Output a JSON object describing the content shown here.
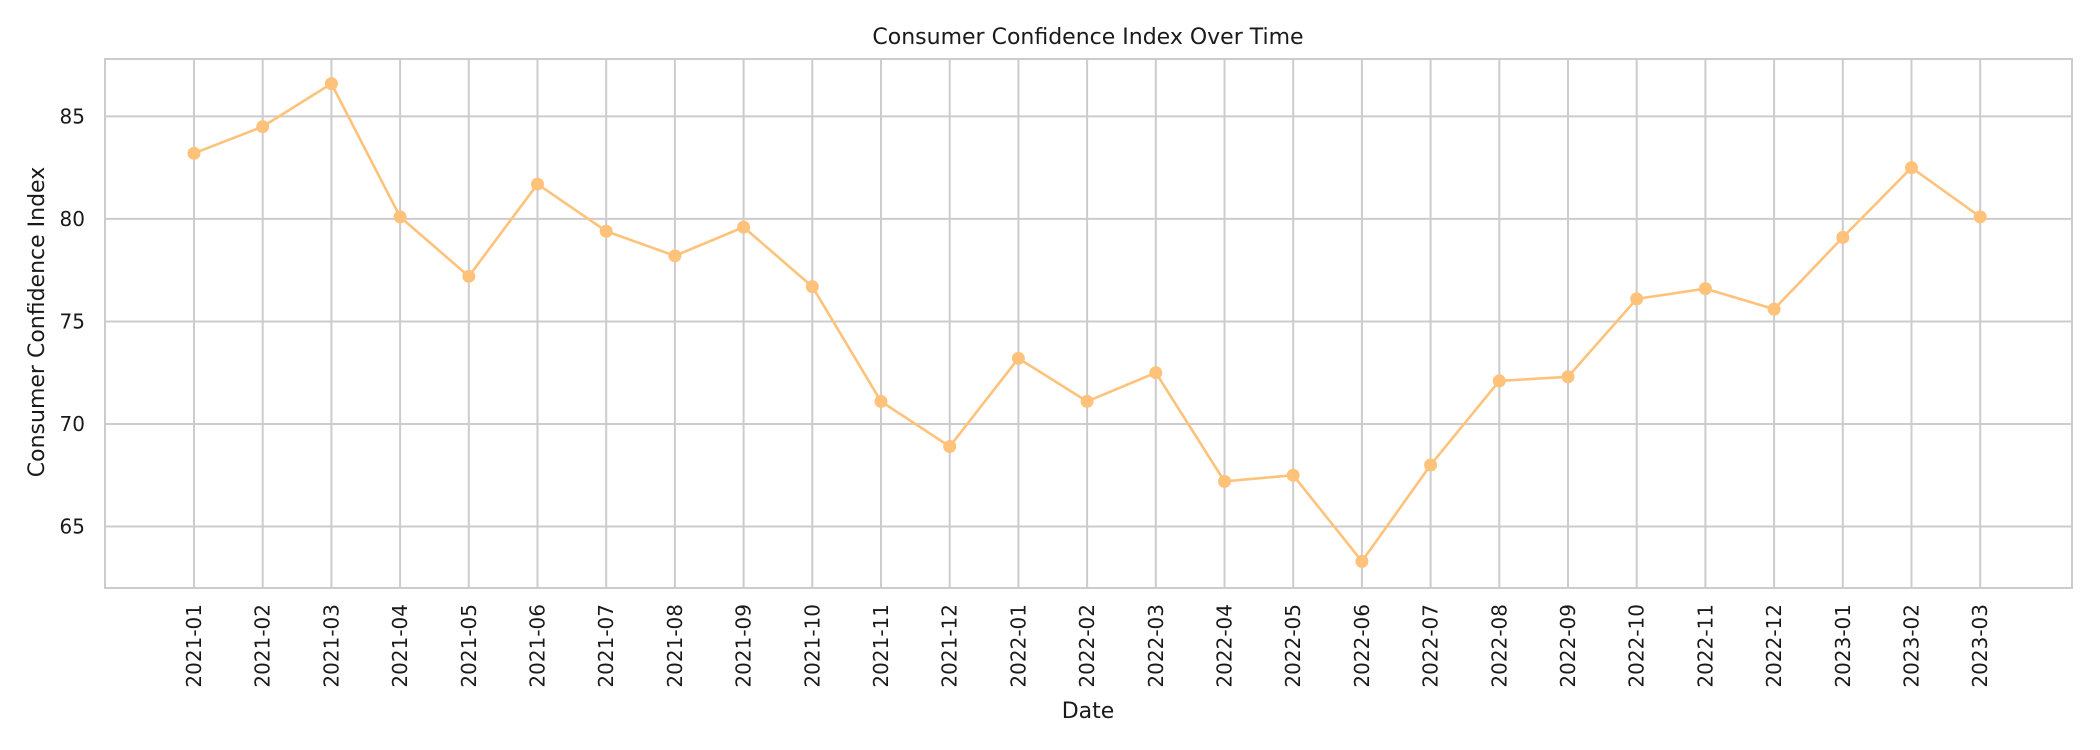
{
  "chart_data": {
    "type": "line",
    "title": "Consumer Confidence Index Over Time",
    "xlabel": "Date",
    "ylabel": "Consumer Confidence Index",
    "grid": true,
    "ylim": [
      62,
      87.8
    ],
    "yticks": [
      65,
      70,
      75,
      80,
      85
    ],
    "categories": [
      "2021-01",
      "2021-02",
      "2021-03",
      "2021-04",
      "2021-05",
      "2021-06",
      "2021-07",
      "2021-08",
      "2021-09",
      "2021-10",
      "2021-11",
      "2021-12",
      "2022-01",
      "2022-02",
      "2022-03",
      "2022-04",
      "2022-05",
      "2022-06",
      "2022-07",
      "2022-08",
      "2022-09",
      "2022-10",
      "2022-11",
      "2022-12",
      "2023-01",
      "2023-02",
      "2023-03"
    ],
    "series": [
      {
        "values": [
          83.2,
          84.5,
          86.6,
          80.1,
          77.2,
          81.7,
          79.4,
          78.2,
          79.6,
          76.7,
          71.1,
          68.9,
          73.2,
          71.1,
          72.5,
          67.2,
          67.5,
          63.3,
          68.0,
          72.1,
          72.3,
          76.1,
          76.6,
          75.6,
          79.1,
          82.5,
          80.1
        ],
        "color": "#ffc27a"
      }
    ]
  }
}
